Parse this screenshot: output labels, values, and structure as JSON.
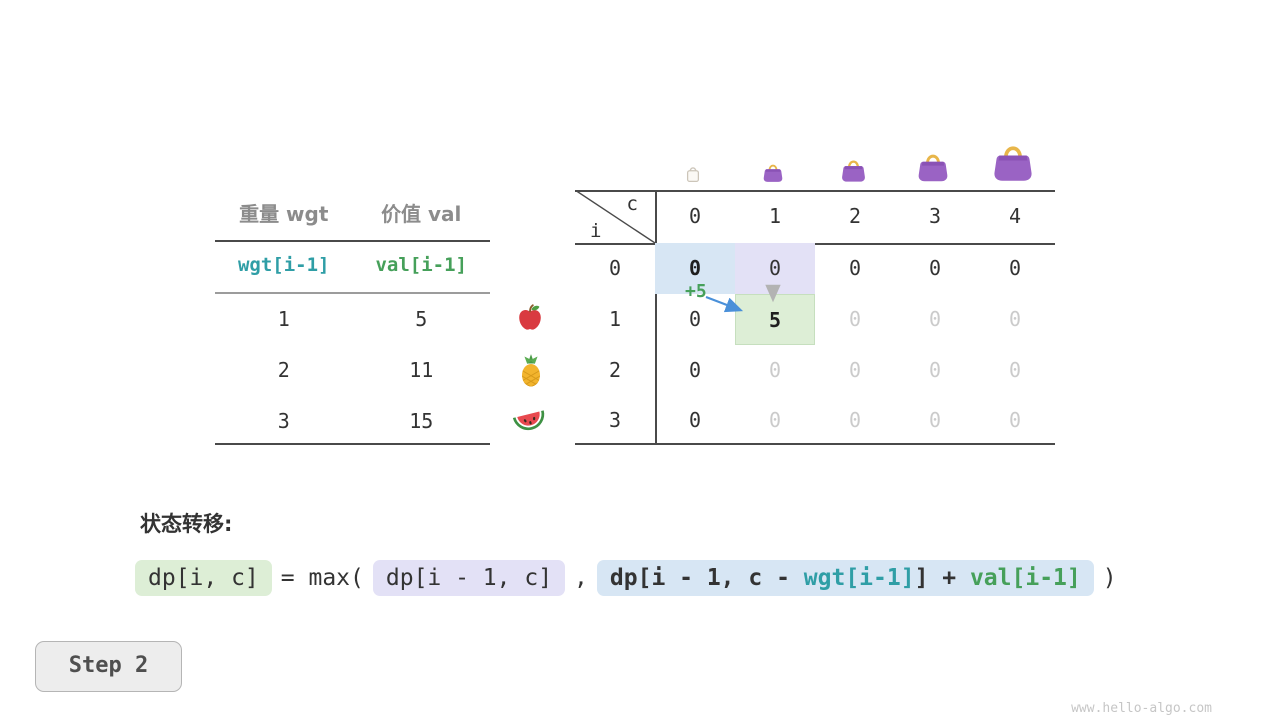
{
  "left_table": {
    "col_headers": [
      "重量 wgt",
      "价值 val"
    ],
    "var_row": [
      "wgt[i-1]",
      "val[i-1]"
    ],
    "rows": [
      {
        "wgt": "1",
        "val": "5",
        "icon": "apple-icon"
      },
      {
        "wgt": "2",
        "val": "11",
        "icon": "pineapple-icon"
      },
      {
        "wgt": "3",
        "val": "15",
        "icon": "watermelon-icon"
      }
    ]
  },
  "dp_table": {
    "corner_col": "c",
    "corner_row": "i",
    "col_headers": [
      "0",
      "1",
      "2",
      "3",
      "4"
    ],
    "row_headers": [
      "0",
      "1",
      "2",
      "3"
    ],
    "cells": [
      [
        {
          "v": "0",
          "s": "hl-blue bold"
        },
        {
          "v": "0",
          "s": "hl-purple"
        },
        {
          "v": "0",
          "s": ""
        },
        {
          "v": "0",
          "s": ""
        },
        {
          "v": "0",
          "s": ""
        }
      ],
      [
        {
          "v": "0",
          "s": ""
        },
        {
          "v": "5",
          "s": "hl-green bold"
        },
        {
          "v": "0",
          "s": "muted"
        },
        {
          "v": "0",
          "s": "muted"
        },
        {
          "v": "0",
          "s": "muted"
        }
      ],
      [
        {
          "v": "0",
          "s": ""
        },
        {
          "v": "0",
          "s": "muted"
        },
        {
          "v": "0",
          "s": "muted"
        },
        {
          "v": "0",
          "s": "muted"
        },
        {
          "v": "0",
          "s": "muted"
        }
      ],
      [
        {
          "v": "0",
          "s": ""
        },
        {
          "v": "0",
          "s": "muted"
        },
        {
          "v": "0",
          "s": "muted"
        },
        {
          "v": "0",
          "s": "muted"
        },
        {
          "v": "0",
          "s": "muted"
        }
      ]
    ],
    "annotation": "+5",
    "bag_icons": [
      "shopping-bag-empty-icon",
      "handbag-small-icon",
      "handbag-medium-icon",
      "handbag-large-icon",
      "handbag-xlarge-icon"
    ]
  },
  "formula": {
    "label": "状态转移:",
    "lhs": "dp[i, c]",
    "equals_max": "= max(",
    "keep": "dp[i - 1, c]",
    "comma": ",",
    "take_parts": {
      "p1": "dp[i - 1, c - ",
      "wgt": "wgt[i-1]",
      "p2": "] + ",
      "val": "val[i-1]"
    },
    "close": ")"
  },
  "step_label": "Step 2",
  "watermark": "www.hello-algo.com",
  "colors": {
    "wgt_teal": "#2f9ea6",
    "val_green": "#46a05a",
    "hl_blue": "#d7e6f4",
    "hl_purple": "#e3e1f6",
    "hl_green": "#ddeed6",
    "arrow_blue": "#4a90d9",
    "arrow_gray": "#b3b3b3",
    "bag_purple": "#9a63c4",
    "bag_handle": "#e8b64a"
  }
}
